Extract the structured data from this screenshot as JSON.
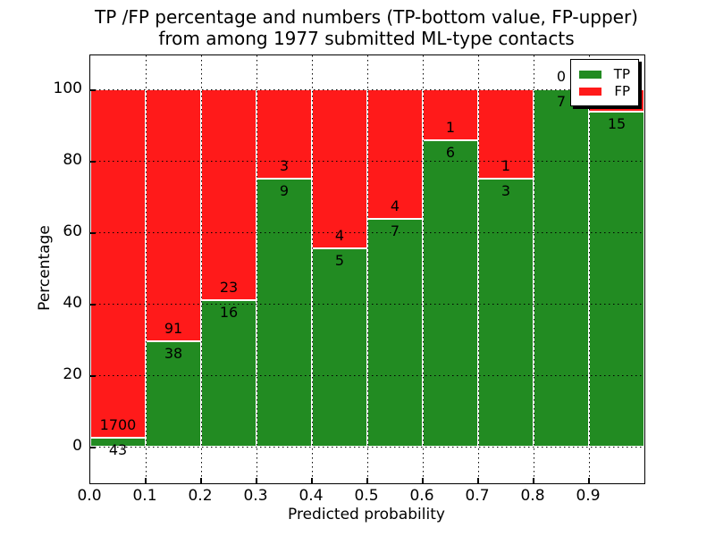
{
  "title": {
    "line1": "TP /FP percentage and numbers (TP-bottom value, FP-upper)",
    "line2": "from among 1977 submitted ML-type contacts"
  },
  "y_axis": {
    "label": "Percentage",
    "ticks": [
      0,
      20,
      40,
      60,
      80,
      100
    ]
  },
  "x_axis": {
    "label": "Predicted probability",
    "ticks": [
      "0.0",
      "0.1",
      "0.2",
      "0.3",
      "0.4",
      "0.5",
      "0.6",
      "0.7",
      "0.8",
      "0.9"
    ]
  },
  "legend": {
    "items": [
      {
        "label": "TP",
        "color": "#228b22"
      },
      {
        "label": "FP",
        "color": "#ff1a1a"
      }
    ]
  },
  "chart_data": {
    "type": "bar",
    "variant": "stacked-percentage",
    "title": "TP /FP percentage and numbers (TP-bottom value, FP-upper) from among 1977 submitted ML-type contacts",
    "xlabel": "Predicted probability",
    "ylabel": "Percentage",
    "total_contacts": 1977,
    "bin_edges": [
      0.0,
      0.1,
      0.2,
      0.3,
      0.4,
      0.5,
      0.6,
      0.7,
      0.8,
      0.9,
      1.0
    ],
    "series": [
      {
        "name": "TP",
        "color": "#228b22",
        "counts": [
          43,
          38,
          16,
          9,
          5,
          7,
          6,
          3,
          7,
          15
        ]
      },
      {
        "name": "FP",
        "color": "#ff1a1a",
        "counts": [
          1700,
          91,
          23,
          3,
          4,
          4,
          1,
          1,
          0,
          1
        ]
      }
    ],
    "tp_percent": [
      2.47,
      29.46,
      41.03,
      75.0,
      55.56,
      63.64,
      85.71,
      75.0,
      100.0,
      93.75
    ],
    "ylim": [
      -10.25,
      109.5
    ],
    "grid": true,
    "grid_style": "dotted",
    "legend_position": "upper right",
    "bar_edge_color": "#ffffff"
  }
}
